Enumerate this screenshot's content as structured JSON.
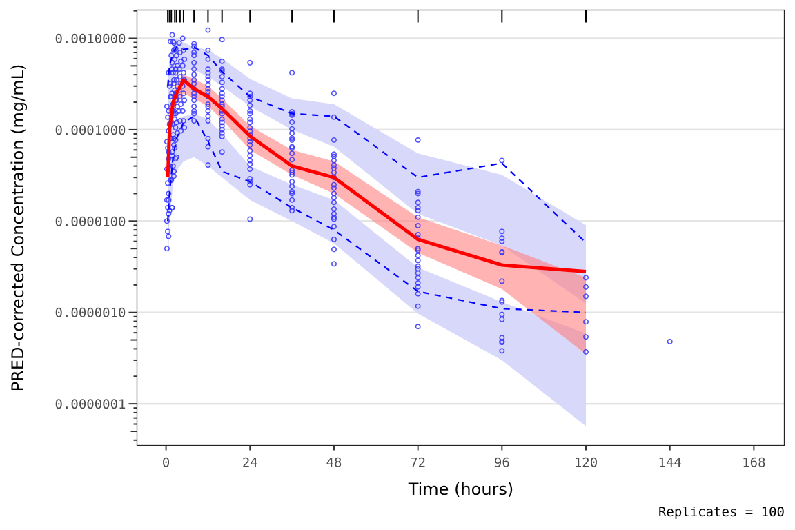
{
  "chart_data": {
    "type": "scatter",
    "xlabel": "Time (hours)",
    "ylabel": "PRED-corrected Concentration (mg/mL)",
    "caption": "Replicates = 100",
    "x_ticks": [
      0,
      24,
      48,
      72,
      96,
      120,
      144,
      168
    ],
    "x_tick_labels": [
      "0",
      "24",
      "48",
      "72",
      "96",
      "120",
      "144",
      "168"
    ],
    "y_scale": "log10",
    "y_ticks": [
      0.001,
      0.0001,
      1e-05,
      1e-06,
      1e-07
    ],
    "y_tick_labels": [
      "0.0010000",
      "0.0001000",
      "0.0000100",
      "0.0000010",
      "0.0000001"
    ],
    "xlim": [
      -8.3,
      176.7
    ],
    "ylim": [
      3.5e-08,
      0.00204
    ],
    "grid": "horizontal major",
    "bin_times_rug": [
      0.5,
      1,
      1.5,
      2.5,
      3,
      4,
      5,
      8,
      12,
      16,
      24,
      36,
      48,
      72,
      96,
      120
    ],
    "colors": {
      "points": "#3333ff",
      "observed_percentile_lines": "#0000ff",
      "observed_median": "#ff0000",
      "pi_outer": "#d6d6fa",
      "pi_median": "#ffb3b3",
      "grid": "#e3e3e3"
    },
    "bin_x": [
      0.5,
      1,
      2,
      3,
      5,
      8,
      12,
      16,
      24,
      36,
      48,
      72,
      96,
      120
    ],
    "series": [
      {
        "name": "Observed median",
        "style": "solid red",
        "values": [
          3e-05,
          0.0001,
          0.0002,
          0.00025,
          0.00035,
          0.00028,
          0.00023,
          0.00017,
          8.5e-05,
          4e-05,
          3e-05,
          6.3e-06,
          3.3e-06,
          2.8e-06
        ]
      },
      {
        "name": "Observed 95th percentile",
        "style": "dashed blue",
        "values": [
          0.0003,
          0.0005,
          0.0007,
          0.0008,
          0.00075,
          0.0008,
          0.00065,
          0.00043,
          0.00023,
          0.00015,
          0.00014,
          3e-05,
          4.3e-05,
          5.8e-06
        ]
      },
      {
        "name": "Observed 5th percentile",
        "style": "dashed blue",
        "values": [
          1e-05,
          2e-05,
          5e-05,
          8e-05,
          0.00012,
          0.00014,
          7.5e-05,
          3.5e-05,
          2.7e-05,
          1.4e-05,
          8e-06,
          1.7e-06,
          1.1e-06,
          1e-06
        ]
      }
    ],
    "ribbons": [
      {
        "name": "Simulated 95th percentile CI",
        "color": "#d6d6fa",
        "lo": [
          6e-05,
          0.00015,
          0.0003,
          0.0004,
          0.00045,
          0.00045,
          0.00038,
          0.0003,
          0.00018,
          0.0001,
          6.5e-05,
          1.2e-05,
          5.4e-06,
          1.25e-06
        ],
        "hi": [
          0.0003,
          0.0006,
          0.0009,
          0.001,
          0.0009,
          0.0008,
          0.00075,
          0.0006,
          0.00036,
          0.00022,
          0.00019,
          5.5e-05,
          3.2e-05,
          9e-06
        ]
      },
      {
        "name": "Simulated 5th percentile CI",
        "color": "#d6d6fa",
        "lo": [
          3e-06,
          1e-05,
          2.5e-05,
          3.5e-05,
          4.5e-05,
          5e-05,
          4e-05,
          3e-05,
          1.7e-05,
          1e-05,
          5.7e-06,
          9.7e-07,
          3e-07,
          5.7e-08
        ],
        "hi": [
          4e-05,
          8e-05,
          0.00012,
          0.00013,
          0.00014,
          0.00015,
          0.00013,
          9e-05,
          4e-05,
          2.5e-05,
          1.7e-05,
          3.1e-06,
          1.3e-06,
          5.9e-07
        ]
      },
      {
        "name": "Simulated median CI",
        "color": "#ff8080",
        "lo": [
          2e-05,
          6e-05,
          0.00014,
          0.00019,
          0.00025,
          0.00022,
          0.00018,
          0.00013,
          6e-05,
          3.2e-05,
          2e-05,
          4.5e-06,
          1.8e-06,
          3.5e-07
        ],
        "hi": [
          6e-05,
          0.00013,
          0.00025,
          0.00032,
          0.0004,
          0.00036,
          0.0003,
          0.00022,
          0.00011,
          6e-05,
          4.5e-05,
          1.1e-05,
          5.4e-06,
          2.4e-06
        ]
      }
    ],
    "observations": [
      {
        "t": 0.5,
        "values": [
          0.00018,
          0.000137,
          9.7e-05,
          7.4e-05,
          6.3e-05,
          4.8e-05,
          3.7e-05,
          2.6e-05,
          2e-05,
          1.7e-05,
          1.4e-05,
          1.2e-05,
          1e-05,
          7.7e-06,
          6.8e-06,
          5e-06
        ]
      },
      {
        "t": 1,
        "values": [
          0.00042,
          0.0003,
          0.00023,
          0.00016,
          0.000115,
          8e-05,
          5.7e-05,
          4e-05,
          2.8e-05,
          1.7e-05,
          1.3e-05
        ]
      },
      {
        "t": 1.5,
        "values": [
          0.00092,
          0.00065,
          0.00046,
          0.00032,
          0.00023,
          0.00016,
          0.000115,
          8e-05,
          5.7e-05,
          4e-05,
          2.8e-05,
          1.4e-05
        ]
      },
      {
        "t": 2,
        "values": [
          0.00109,
          0.00092,
          0.00074,
          0.00054,
          0.00042,
          0.00032,
          0.00025,
          0.00019,
          0.00015,
          0.000115,
          8.8e-05,
          6.8e-05,
          5.2e-05,
          4e-05,
          3.1e-05,
          1.4e-05
        ]
      },
      {
        "t": 2.5,
        "values": [
          0.00089,
          0.00059,
          0.00046,
          0.00035,
          0.00027,
          0.00021,
          0.00016,
          0.00013,
          0.000105,
          8e-05,
          6.3e-05,
          4.8e-05,
          3.5e-05
        ]
      },
      {
        "t": 3,
        "values": [
          0.00077,
          0.00065,
          0.0005,
          0.00042,
          0.00035,
          0.0003,
          0.00025,
          0.00021,
          0.00018,
          0.00015,
          0.00012,
          9.2e-05,
          7.7e-05,
          5e-05
        ]
      },
      {
        "t": 4,
        "values": [
          0.00089,
          0.0007,
          0.00056,
          0.00046,
          0.00038,
          0.00032,
          0.00027,
          0.00023,
          0.00019,
          0.00016,
          0.000125,
          9.7e-05
        ]
      },
      {
        "t": 5,
        "values": [
          0.001,
          0.00074,
          0.00059,
          0.0005,
          0.00042,
          0.00035,
          0.0003,
          0.00025,
          0.00021,
          0.00016,
          0.000125,
          0.000105
        ]
      },
      {
        "t": 8,
        "values": [
          0.00087,
          0.00081,
          0.0007,
          0.00065,
          0.00054,
          0.00046,
          0.0004,
          0.00035,
          0.00032,
          0.00028,
          0.00025,
          0.00023,
          0.00021,
          0.00018,
          0.00016,
          0.00015,
          0.000125
        ]
      },
      {
        "t": 12,
        "values": [
          0.00123,
          0.00074,
          0.00059,
          0.00046,
          0.00042,
          0.00038,
          0.00035,
          0.00031,
          0.00028,
          0.00026,
          0.00023,
          0.00019,
          0.00018,
          0.00016,
          0.00014,
          0.000125,
          8e-05,
          6.5e-05,
          4.1e-05
        ]
      },
      {
        "t": 16,
        "values": [
          0.00097,
          0.00056,
          0.00046,
          0.00044,
          0.00038,
          0.00033,
          0.00028,
          0.00025,
          0.00023,
          0.00021,
          0.00019,
          0.00018,
          0.00016,
          0.00015,
          0.00013,
          0.00012,
          0.00011,
          0.0001,
          9.2e-05,
          8.4e-05,
          5.7e-05
        ]
      },
      {
        "t": 24,
        "values": [
          0.00054,
          0.00025,
          0.00023,
          0.00021,
          0.000185,
          0.00016,
          0.00015,
          0.00013,
          0.00012,
          0.000105,
          9.6e-05,
          8.8e-05,
          8e-05,
          7.4e-05,
          6.8e-05,
          5.9e-05,
          5.2e-05,
          4.6e-05,
          4.2e-05,
          3.7e-05,
          2.9e-05,
          2.7e-05,
          2.5e-05,
          1.05e-05
        ]
      },
      {
        "t": 36,
        "values": [
          0.00042,
          0.000157,
          0.000149,
          0.000144,
          0.000121,
          0.000102,
          9.2e-05,
          8.1e-05,
          7.7e-05,
          6.5e-05,
          6.3e-05,
          5.5e-05,
          4.7e-05,
          3.6e-05,
          3.4e-05,
          3.2e-05,
          2.7e-05,
          2.4e-05,
          2.1e-05,
          2e-05,
          1.7e-05,
          1.4e-05,
          1.3e-05
        ]
      },
      {
        "t": 48,
        "values": [
          0.00025,
          0.000137,
          7.7e-05,
          5.4e-05,
          5.1e-05,
          4.6e-05,
          4.1e-05,
          3.8e-05,
          3.4e-05,
          3e-05,
          2.5e-05,
          2.3e-05,
          2e-05,
          1.8e-05,
          1.6e-05,
          1.35e-05,
          1.2e-05,
          1.1e-05,
          1.05e-05,
          8.7e-06,
          6.3e-06,
          4.9e-06,
          3.4e-06
        ]
      },
      {
        "t": 72,
        "values": [
          7.7e-05,
          2.1e-05,
          2e-05,
          1.6e-05,
          1.4e-05,
          1.3e-05,
          1.1e-05,
          8.9e-06,
          7.1e-06,
          6.5e-06,
          5e-06,
          4.8e-06,
          4.2e-06,
          3.7e-06,
          3.2e-06,
          3e-06,
          2.7e-06,
          2.4e-06,
          2.1e-06,
          1.9e-06,
          1.6e-06,
          1.17e-06,
          7e-07
        ]
      },
      {
        "t": 96,
        "values": [
          4.6e-05,
          7.7e-06,
          6.5e-06,
          6e-06,
          4.6e-06,
          4.5e-06,
          2.2e-06,
          1.35e-06,
          1.3e-06,
          9.5e-07,
          8.4e-07,
          5.3e-07,
          4.8e-07,
          4.7e-07,
          3.8e-07
        ]
      },
      {
        "t": 120,
        "values": [
          2.4e-06,
          1.9e-06,
          1.5e-06,
          7.9e-07,
          5.4e-07,
          3.7e-07
        ]
      },
      {
        "t": 144,
        "values": [
          4.8e-07
        ]
      }
    ]
  }
}
